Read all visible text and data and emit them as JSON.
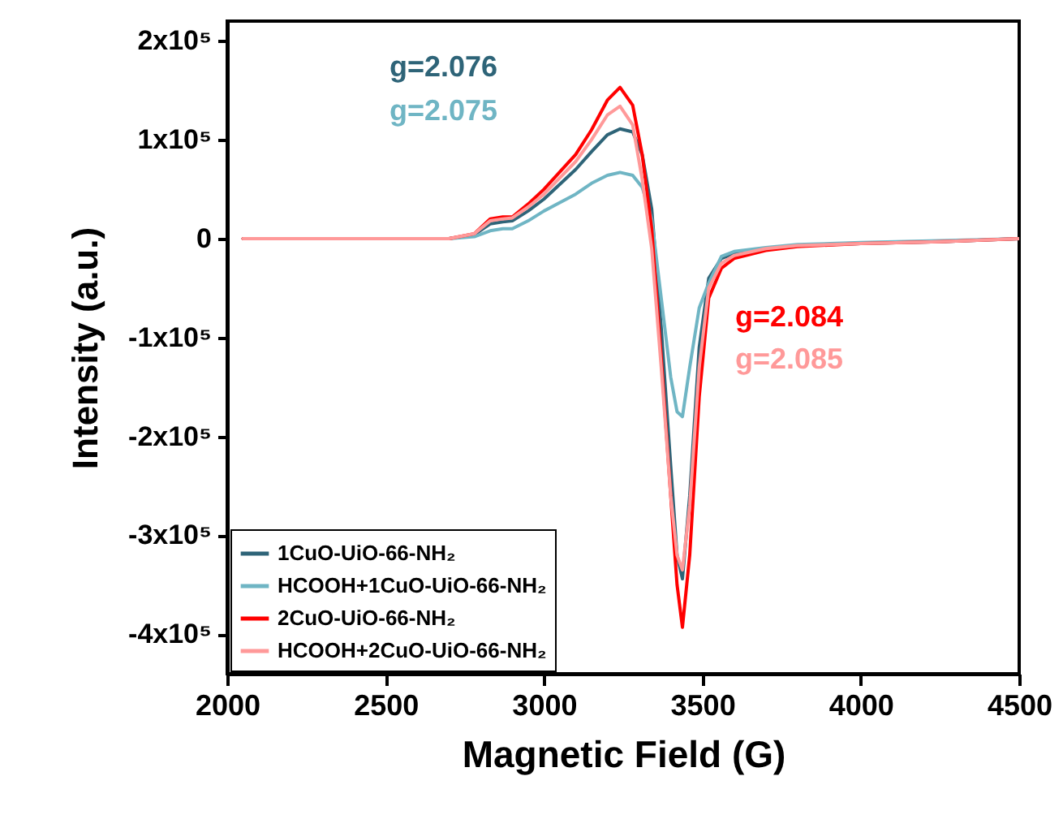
{
  "chart_data": {
    "type": "line",
    "xlabel": "Magnetic Field (G)",
    "ylabel": "Intensity (a.u.)",
    "x": [
      2050,
      2500,
      2700,
      2780,
      2830,
      2870,
      2900,
      2950,
      3000,
      3100,
      3150,
      3200,
      3240,
      3280,
      3310,
      3340,
      3370,
      3400,
      3420,
      3437,
      3460,
      3490,
      3520,
      3560,
      3600,
      3700,
      3800,
      4000,
      4250,
      4500
    ],
    "series": [
      {
        "name": "1CuO-UiO-66-NH₂",
        "color": "#2e6478",
        "values": [
          0,
          0,
          0,
          4000,
          15000,
          17000,
          18000,
          28000,
          40000,
          70000,
          88000,
          105000,
          111000,
          108000,
          85000,
          30000,
          -90000,
          -230000,
          -320000,
          -344000,
          -260000,
          -110000,
          -40000,
          -20000,
          -15000,
          -10000,
          -7000,
          -5000,
          -3000,
          0
        ]
      },
      {
        "name": "HCOOH+1CuO-UiO-66-NH₂",
        "color": "#6fb5c4",
        "values": [
          0,
          0,
          0,
          2000,
          8000,
          10000,
          10000,
          18000,
          28000,
          45000,
          56000,
          64000,
          67000,
          64000,
          52000,
          20000,
          -60000,
          -140000,
          -175000,
          -180000,
          -130000,
          -70000,
          -45000,
          -18000,
          -13000,
          -9000,
          -6000,
          -4000,
          -2000,
          0
        ]
      },
      {
        "name": "2CuO-UiO-66-NH₂",
        "color": "#ff0000",
        "values": [
          0,
          0,
          0,
          5000,
          20000,
          22000,
          22000,
          35000,
          50000,
          85000,
          110000,
          140000,
          153000,
          135000,
          85000,
          10000,
          -120000,
          -260000,
          -350000,
          -393000,
          -320000,
          -160000,
          -60000,
          -30000,
          -20000,
          -12000,
          -8000,
          -5000,
          -3000,
          0
        ]
      },
      {
        "name": "HCOOH+2CuO-UiO-66-NH₂",
        "color": "#ff9999",
        "values": [
          0,
          0,
          0,
          5000,
          18000,
          20000,
          21000,
          32000,
          45000,
          78000,
          100000,
          125000,
          134000,
          115000,
          60000,
          -10000,
          -130000,
          -260000,
          -320000,
          -335000,
          -270000,
          -130000,
          -50000,
          -25000,
          -17000,
          -10000,
          -7000,
          -5000,
          -3000,
          0
        ]
      }
    ],
    "xlim": [
      2000,
      4500
    ],
    "xticks": [
      2000,
      2500,
      3000,
      3500,
      4000,
      4500
    ],
    "ylim": [
      -440000,
      220000
    ],
    "yticks": [
      {
        "value": -400000,
        "label": "-4x10⁵"
      },
      {
        "value": -300000,
        "label": "-3x10⁵"
      },
      {
        "value": -200000,
        "label": "-2x10⁵"
      },
      {
        "value": -100000,
        "label": "-1x10⁵"
      },
      0,
      {
        "value": 100000,
        "label": "1x10⁵"
      },
      {
        "value": 200000,
        "label": "2x10⁵"
      }
    ],
    "annotations": [
      "g=2.076",
      "g=2.075",
      "g=2.084",
      "g=2.085"
    ],
    "legend": "bottom left",
    "grid": false,
    "line_style": "solid"
  }
}
